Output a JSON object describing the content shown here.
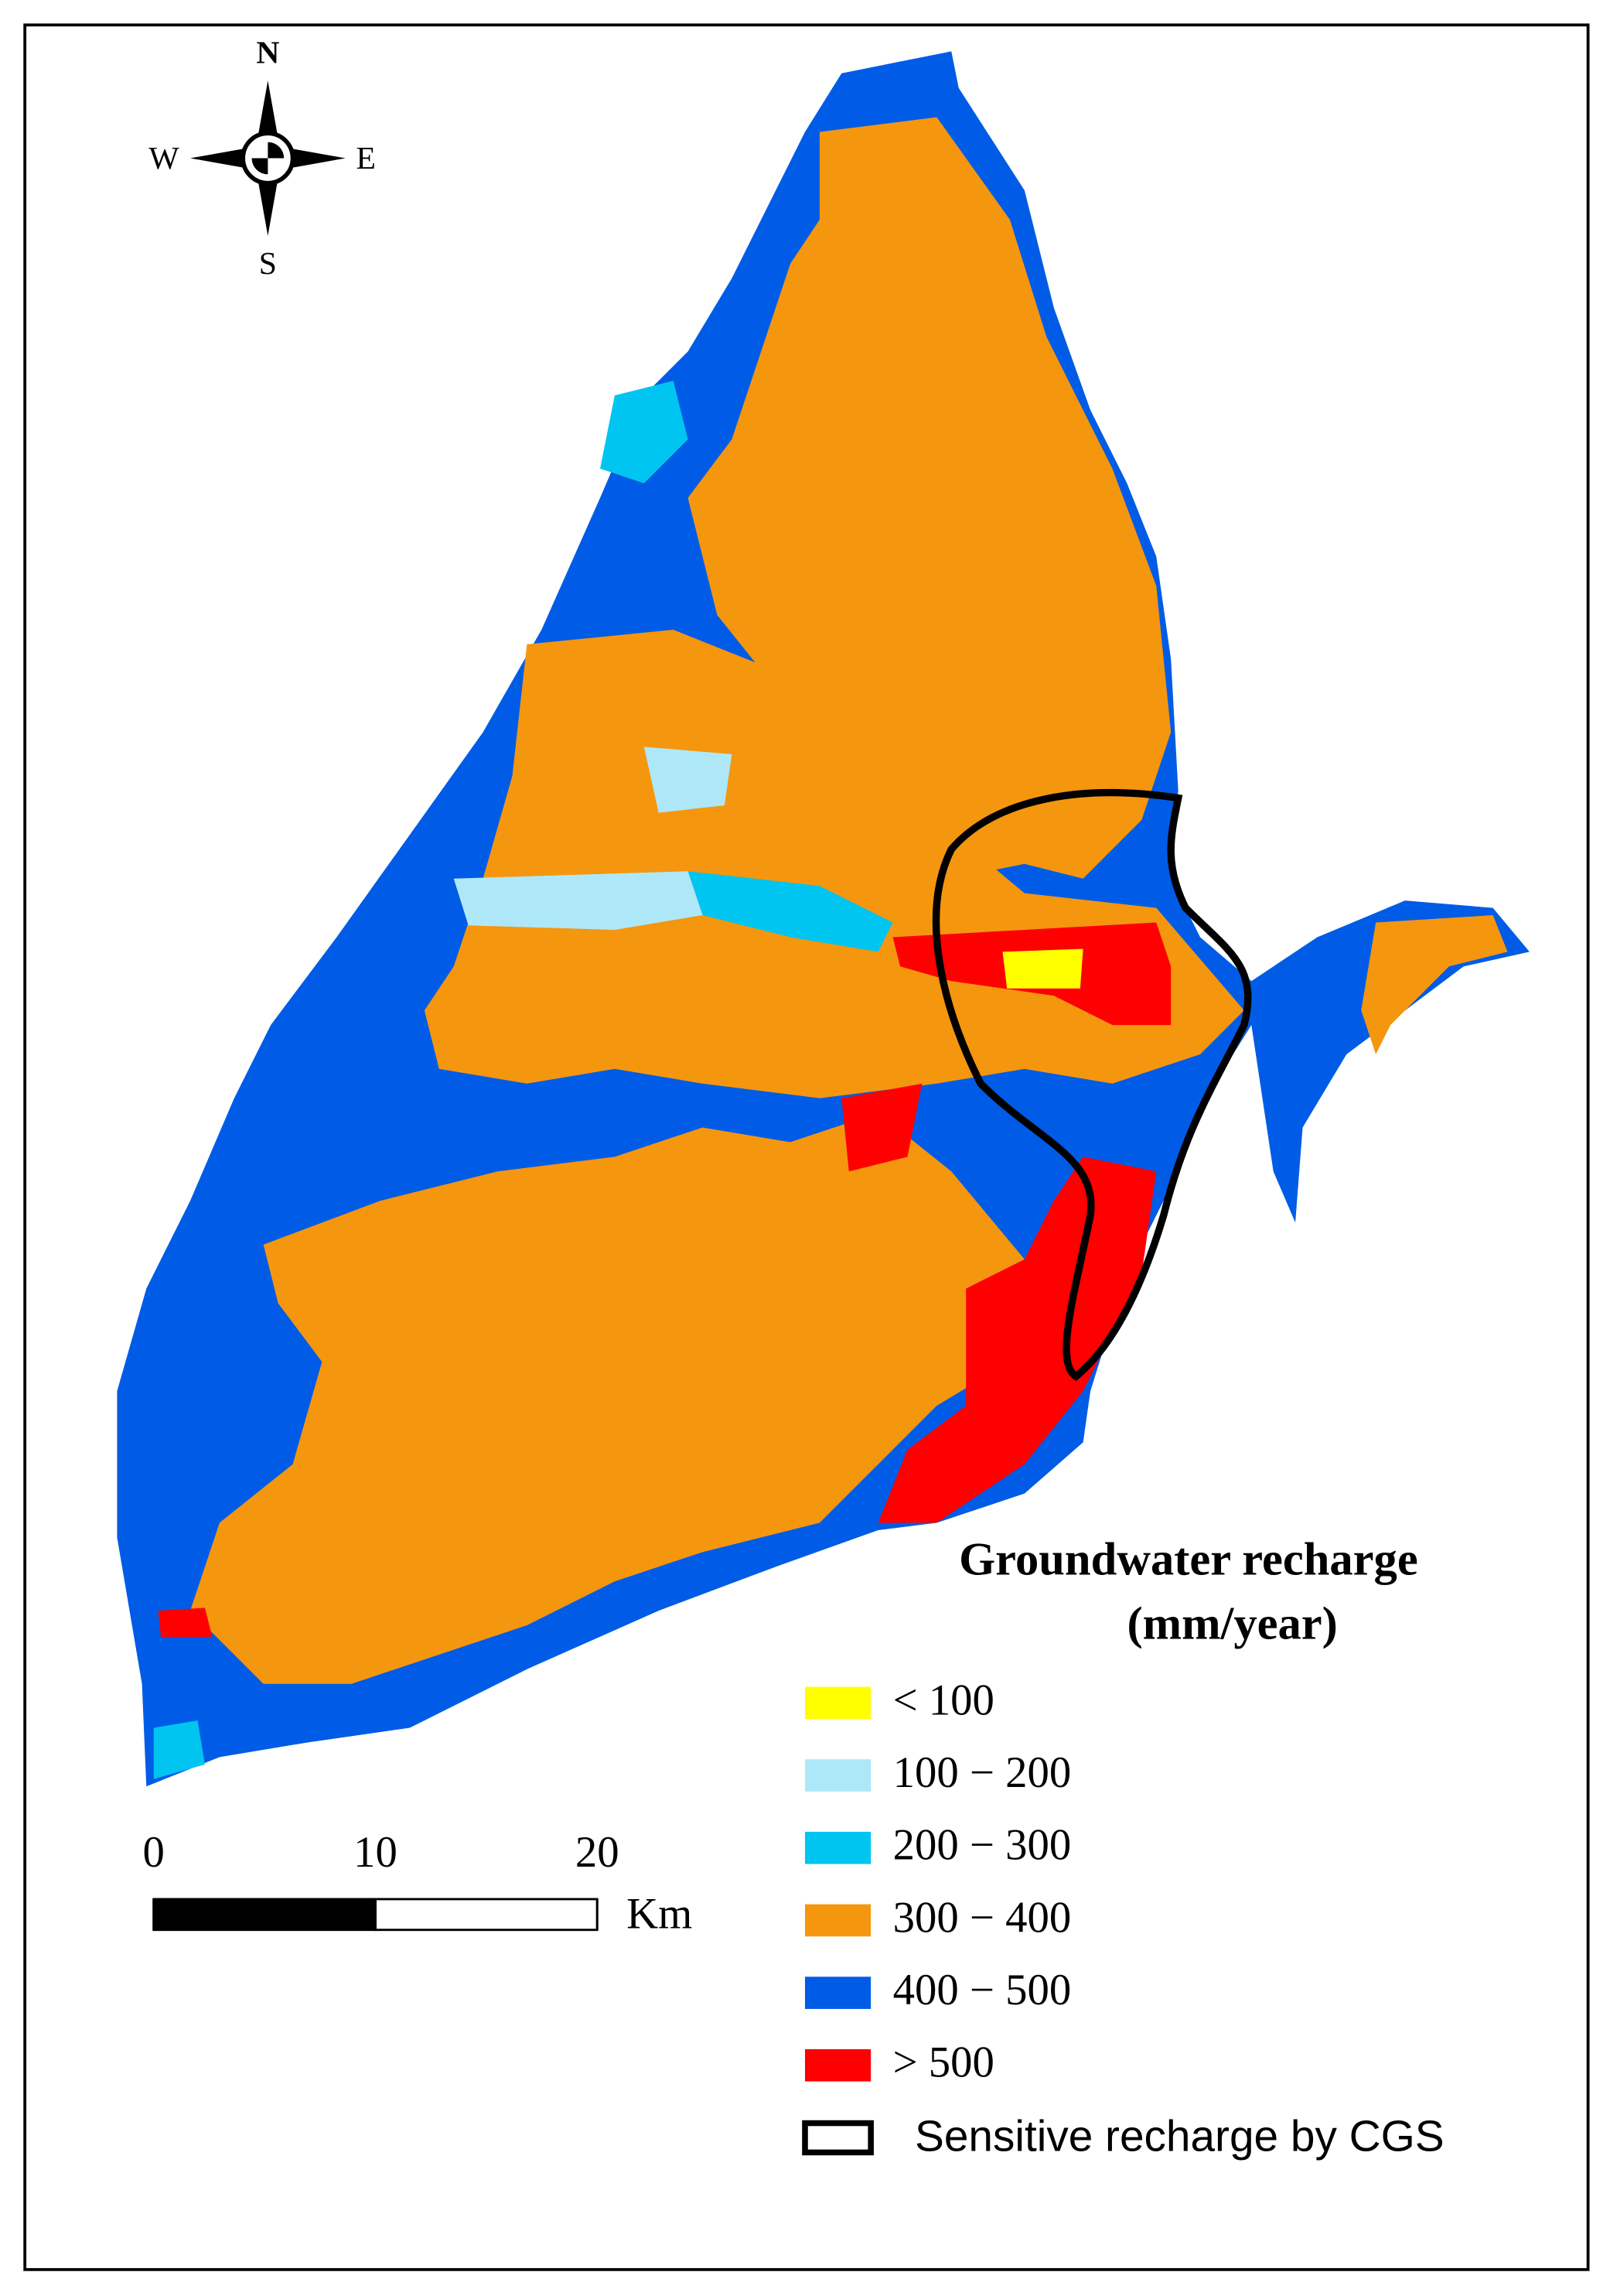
{
  "compass": {
    "north": "N",
    "south": "S",
    "west": "W",
    "east": "E"
  },
  "legend": {
    "title": "Groundwater recharge",
    "subtitle": "(mm/year)",
    "items": [
      {
        "label": "< 100",
        "color": "#ffff00"
      },
      {
        "label": "100 − 200",
        "color": "#aee8f8"
      },
      {
        "label": "200 − 300",
        "color": "#00c5f0"
      },
      {
        "label": "300 − 400",
        "color": "#f5960f"
      },
      {
        "label": "400 − 500",
        "color": "#005ce6"
      },
      {
        "label": "> 500",
        "color": "#ff0000"
      }
    ],
    "outline_item": {
      "label": "Sensitive recharge by CGS",
      "color": "#000000"
    }
  },
  "scale_bar": {
    "ticks": [
      0,
      10,
      20
    ],
    "unit": "Km"
  }
}
